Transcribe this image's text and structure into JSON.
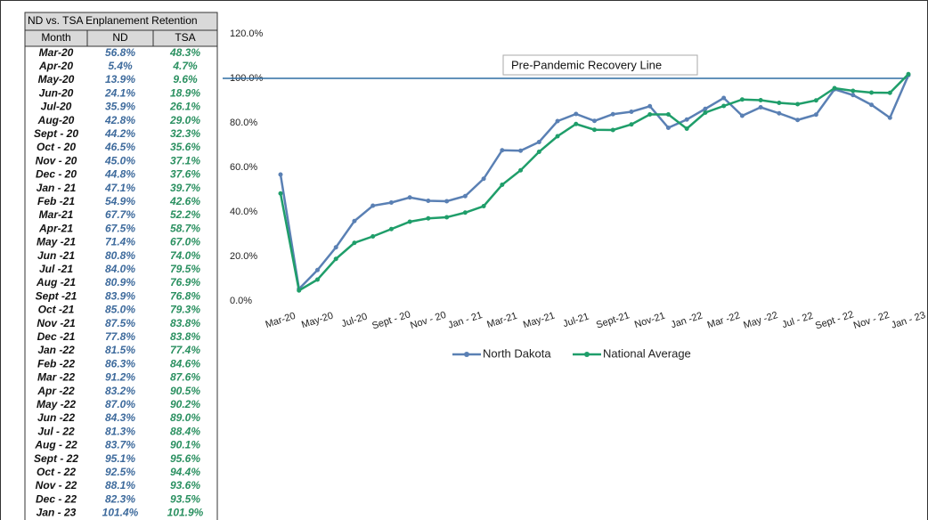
{
  "table": {
    "title": "ND vs. TSA Enplanement Retention",
    "columns": [
      "Month",
      "ND",
      "TSA"
    ],
    "rows": [
      [
        "Mar-20",
        "56.8%",
        "48.3%"
      ],
      [
        "Apr-20",
        "5.4%",
        "4.7%"
      ],
      [
        "May-20",
        "13.9%",
        "9.6%"
      ],
      [
        "Jun-20",
        "24.1%",
        "18.9%"
      ],
      [
        "Jul-20",
        "35.9%",
        "26.1%"
      ],
      [
        "Aug-20",
        "42.8%",
        "29.0%"
      ],
      [
        "Sept - 20",
        "44.2%",
        "32.3%"
      ],
      [
        "Oct - 20",
        "46.5%",
        "35.6%"
      ],
      [
        "Nov - 20",
        "45.0%",
        "37.1%"
      ],
      [
        "Dec - 20",
        "44.8%",
        "37.6%"
      ],
      [
        "Jan - 21",
        "47.1%",
        "39.7%"
      ],
      [
        "Feb -21",
        "54.9%",
        "42.6%"
      ],
      [
        "Mar-21",
        "67.7%",
        "52.2%"
      ],
      [
        "Apr-21",
        "67.5%",
        "58.7%"
      ],
      [
        "May -21",
        "71.4%",
        "67.0%"
      ],
      [
        "Jun -21",
        "80.8%",
        "74.0%"
      ],
      [
        "Jul -21",
        "84.0%",
        "79.5%"
      ],
      [
        "Aug -21",
        "80.9%",
        "76.9%"
      ],
      [
        "Sept -21",
        "83.9%",
        "76.8%"
      ],
      [
        "Oct -21",
        "85.0%",
        "79.3%"
      ],
      [
        "Nov -21",
        "87.5%",
        "83.8%"
      ],
      [
        "Dec -21",
        "77.8%",
        "83.8%"
      ],
      [
        "Jan -22",
        "81.5%",
        "77.4%"
      ],
      [
        "Feb -22",
        "86.3%",
        "84.6%"
      ],
      [
        "Mar -22",
        "91.2%",
        "87.6%"
      ],
      [
        "Apr -22",
        "83.2%",
        "90.5%"
      ],
      [
        "May -22",
        "87.0%",
        "90.2%"
      ],
      [
        "Jun -22",
        "84.3%",
        "89.0%"
      ],
      [
        "Jul - 22",
        "81.3%",
        "88.4%"
      ],
      [
        "Aug - 22",
        "83.7%",
        "90.1%"
      ],
      [
        "Sept - 22",
        "95.1%",
        "95.6%"
      ],
      [
        "Oct - 22",
        "92.5%",
        "94.4%"
      ],
      [
        "Nov - 22",
        "88.1%",
        "93.6%"
      ],
      [
        "Dec - 22",
        "82.3%",
        "93.5%"
      ],
      [
        "Jan - 23",
        "101.4%",
        "101.9%"
      ]
    ]
  },
  "chart_data": {
    "type": "line",
    "categories": [
      "Mar-20",
      null,
      "May-20",
      null,
      "Jul-20",
      null,
      "Sept - 20",
      null,
      "Nov - 20",
      null,
      "Jan - 21",
      null,
      "Mar-21",
      null,
      "May-21",
      null,
      "Jul-21",
      null,
      "Sept-21",
      null,
      "Nov-21",
      null,
      "Jan -22",
      null,
      "Mar -22",
      null,
      "May -22",
      null,
      "Jul - 22",
      null,
      "Sept - 22",
      null,
      "Nov - 22",
      null,
      "Jan - 23"
    ],
    "series": [
      {
        "name": "North Dakota",
        "color": "#5a80b4",
        "values": [
          56.8,
          5.4,
          13.9,
          24.1,
          35.9,
          42.8,
          44.2,
          46.5,
          45.0,
          44.8,
          47.1,
          54.9,
          67.7,
          67.5,
          71.4,
          80.8,
          84.0,
          80.9,
          83.9,
          85.0,
          87.5,
          77.8,
          81.5,
          86.3,
          91.2,
          83.2,
          87.0,
          84.3,
          81.3,
          83.7,
          95.1,
          92.5,
          88.1,
          82.3,
          101.4
        ]
      },
      {
        "name": "National Average",
        "color": "#1f9e6a",
        "values": [
          48.3,
          4.7,
          9.6,
          18.9,
          26.1,
          29.0,
          32.3,
          35.6,
          37.1,
          37.6,
          39.7,
          42.6,
          52.2,
          58.7,
          67.0,
          74.0,
          79.5,
          76.9,
          76.8,
          79.3,
          83.8,
          83.8,
          77.4,
          84.6,
          87.6,
          90.5,
          90.2,
          89.0,
          88.4,
          90.1,
          95.6,
          94.4,
          93.6,
          93.5,
          101.9
        ]
      }
    ],
    "ylim": [
      0,
      120
    ],
    "yticks": [
      {
        "value": 0,
        "label": "0.0%"
      },
      {
        "value": 20,
        "label": "20.0%"
      },
      {
        "value": 40,
        "label": "40.0%"
      },
      {
        "value": 60,
        "label": "60.0%"
      },
      {
        "value": 80,
        "label": "80.0%"
      },
      {
        "value": 100,
        "label": "100.0%"
      },
      {
        "value": 120,
        "label": "120.0%"
      }
    ],
    "reference_line": {
      "value": 100,
      "label": "Pre-Pandemic Recovery Line",
      "color": "#2e6da4"
    },
    "grid": false,
    "legend": "bottom"
  }
}
